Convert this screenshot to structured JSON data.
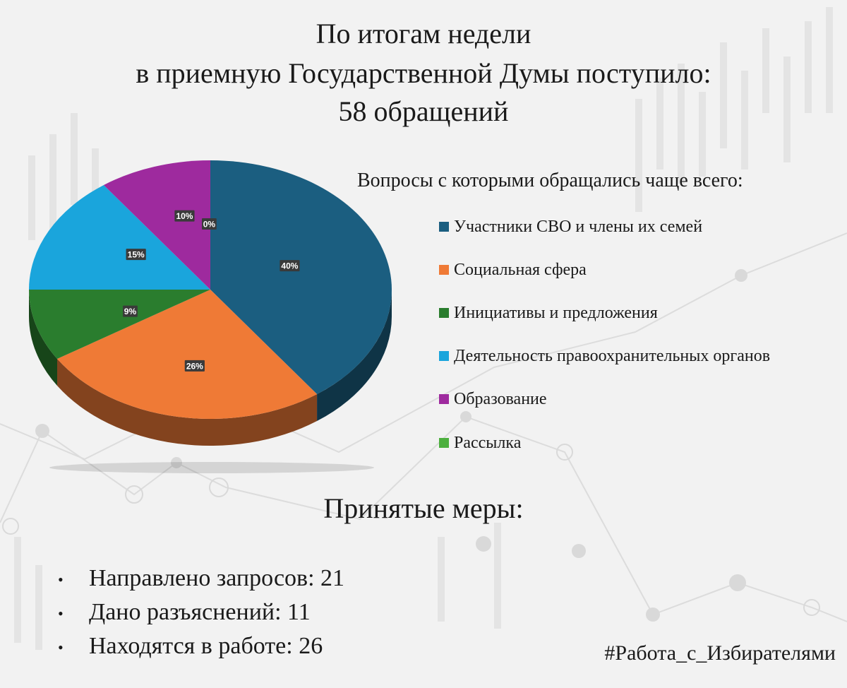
{
  "title": {
    "line1": "По итогам недели",
    "line2": "в приемную Государственной Думы поступило:",
    "line3": "58 обращений"
  },
  "legend_heading": "Вопросы с которыми обращались чаще всего:",
  "chart_data": {
    "type": "pie",
    "categories": [
      "Участники СВО и члены их семей",
      "Социальная сфера",
      "Инициативы и предложения",
      "Деятельность правоохранительных органов",
      "Образование",
      "Рассылка"
    ],
    "values": [
      40,
      26,
      9,
      15,
      10,
      0
    ],
    "data_labels": [
      "40%",
      "26%",
      "9%",
      "15%",
      "10%",
      "0%"
    ],
    "colors": [
      "#1b5e80",
      "#ef7a36",
      "#2a7d2e",
      "#1aa5dc",
      "#9e2a9e",
      "#4caf3e"
    ],
    "legend_placement": "right"
  },
  "measures": {
    "heading": "Принятые меры:",
    "items": [
      "Направлено запросов: 21",
      "Дано разъяснений: 11",
      "Находятся в работе: 26"
    ]
  },
  "hashtag": "#Работа_с_Избирателями"
}
